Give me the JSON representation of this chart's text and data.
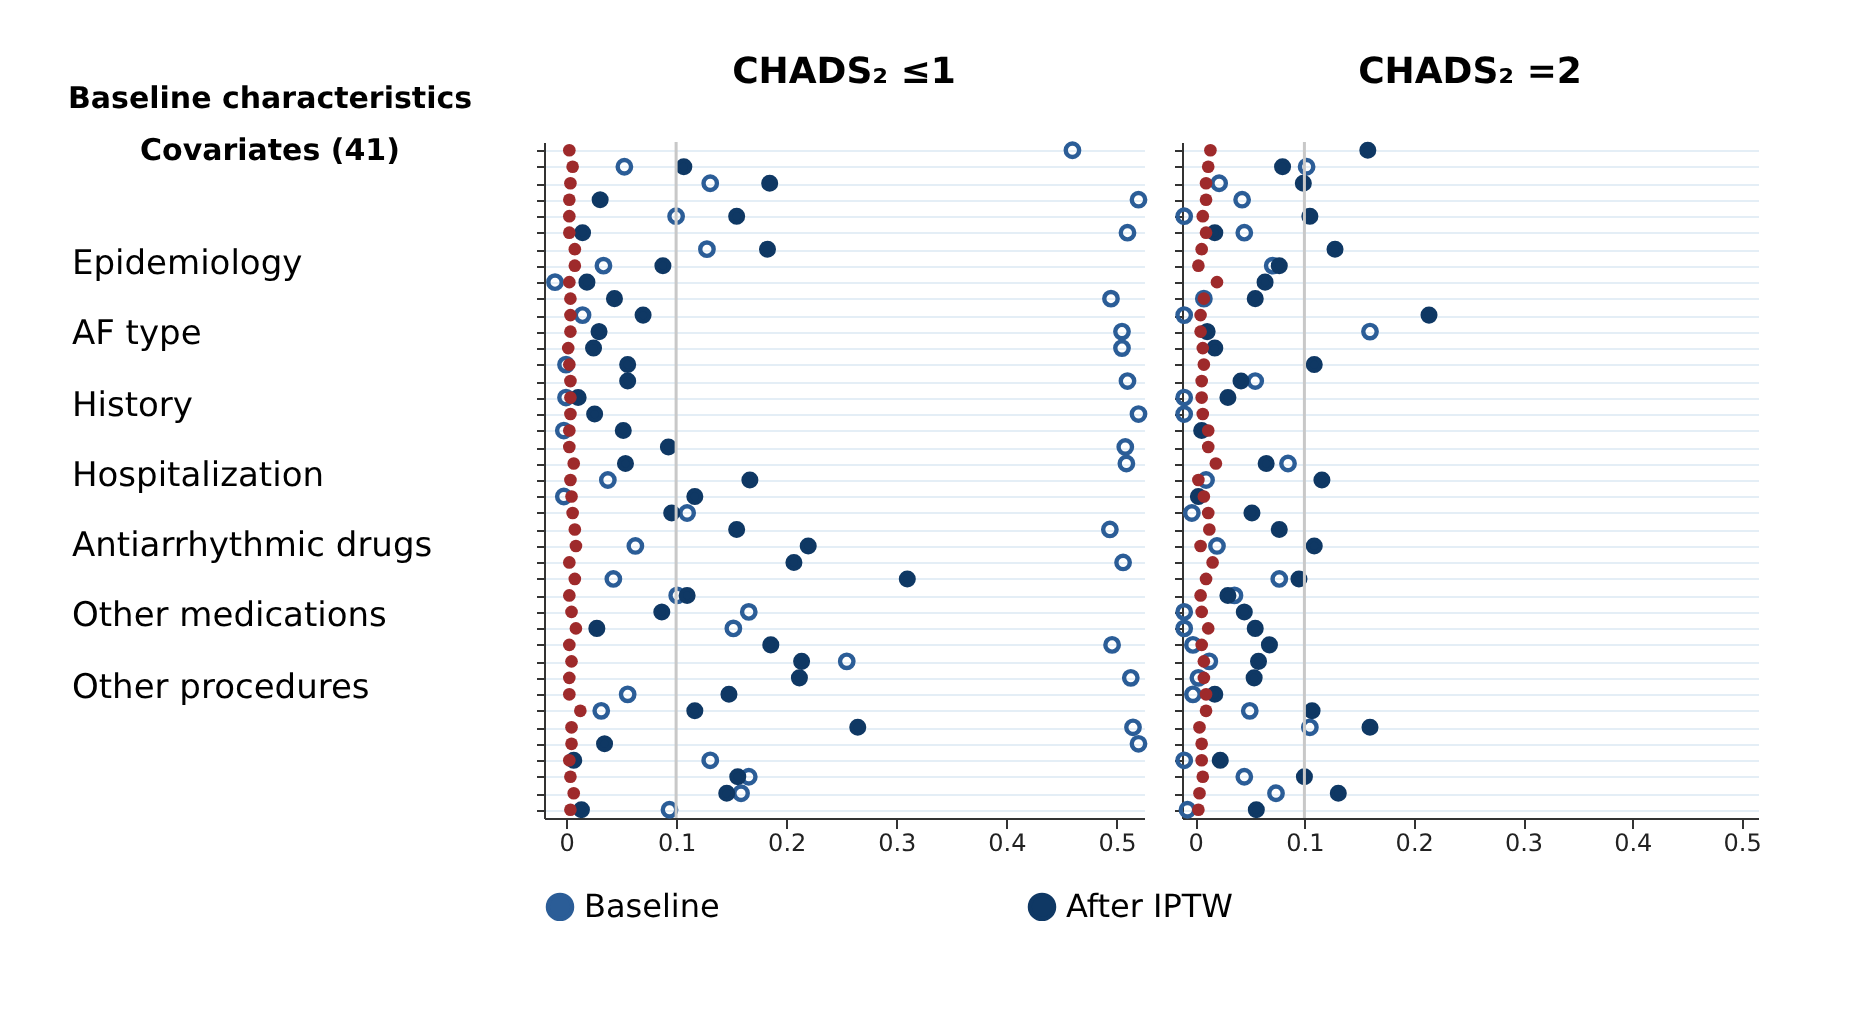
{
  "chart_data": [
    {
      "type": "scatter",
      "orientation": "horizontal",
      "title": "CHADS₂ ≤1",
      "ylabel": "Baseline characteristics Covariates (41)",
      "annotations": [
        "Epidemiology",
        "AF type",
        "History",
        "Hospitalization",
        "Antiarrhythmic drugs",
        "Other medications",
        "Other procedures"
      ],
      "categories": [
        null,
        null,
        null,
        null,
        null,
        null,
        null,
        null,
        null,
        null,
        null,
        null,
        null,
        null,
        null,
        null,
        null,
        null,
        null,
        null,
        null,
        null,
        null,
        null,
        null,
        null,
        null,
        null,
        null,
        null,
        null,
        null,
        null,
        null,
        null,
        null,
        null,
        null,
        null,
        null,
        null
      ],
      "xlim": [
        -0.02,
        0.525
      ],
      "xticks": [
        0,
        0.1,
        0.2,
        0.3,
        0.4,
        0.5
      ],
      "tick_labels": "x",
      "grid": "y",
      "legend": "bottom",
      "marker": "circle",
      "ref_lines": [
        {
          "axis": "x",
          "value": 0.1,
          "color": "#c8c8c8"
        }
      ],
      "series": [
        {
          "name": "Baseline",
          "color": "#2b5d97",
          "values": [
            0.46,
            0.053,
            0.131,
            0.52,
            0.1,
            0.51,
            0.128,
            0.034,
            -0.01,
            0.495,
            0.015,
            0.505,
            0.505,
            0.0,
            0.51,
            0.0,
            0.52,
            -0.002,
            0.508,
            0.509,
            0.038,
            -0.002,
            0.11,
            0.494,
            0.063,
            0.506,
            0.043,
            0.101,
            0.166,
            0.152,
            0.496,
            0.255,
            0.513,
            0.056,
            0.032,
            0.515,
            0.52,
            0.131,
            0.166,
            0.159,
            0.094
          ]
        },
        {
          "name": "After IPTW",
          "color": "#0f3864",
          "values": [
            null,
            0.107,
            0.185,
            0.031,
            0.155,
            0.015,
            0.183,
            0.088,
            0.019,
            0.044,
            0.07,
            0.03,
            0.025,
            0.056,
            0.056,
            0.011,
            0.026,
            0.052,
            0.093,
            0.054,
            0.167,
            0.117,
            0.096,
            0.155,
            0.22,
            0.207,
            0.31,
            0.11,
            0.087,
            0.028,
            0.186,
            0.214,
            0.212,
            0.148,
            0.117,
            0.265,
            0.035,
            0.007,
            0.156,
            0.146,
            0.014
          ]
        },
        {
          "color": "#9e2a2b",
          "values": [
            0.003,
            0.006,
            0.004,
            0.003,
            0.003,
            0.003,
            0.008,
            0.008,
            0.003,
            0.004,
            0.004,
            0.004,
            0.002,
            0.003,
            0.004,
            0.004,
            0.004,
            0.003,
            0.003,
            0.007,
            0.004,
            0.005,
            0.006,
            0.008,
            0.009,
            0.003,
            0.008,
            0.003,
            0.005,
            0.009,
            0.003,
            0.005,
            0.003,
            0.003,
            0.013,
            0.005,
            0.005,
            0.003,
            0.004,
            0.007,
            0.004
          ]
        }
      ]
    },
    {
      "type": "scatter",
      "orientation": "horizontal",
      "title": "CHADS₂ =2",
      "categories": [
        null,
        null,
        null,
        null,
        null,
        null,
        null,
        null,
        null,
        null,
        null,
        null,
        null,
        null,
        null,
        null,
        null,
        null,
        null,
        null,
        null,
        null,
        null,
        null,
        null,
        null,
        null,
        null,
        null,
        null,
        null,
        null,
        null,
        null,
        null,
        null,
        null,
        null,
        null,
        null,
        null
      ],
      "xlim": [
        -0.012,
        0.515
      ],
      "xticks": [
        0,
        0.1,
        0.2,
        0.3,
        0.4,
        0.5
      ],
      "tick_labels": "x",
      "grid": "y",
      "legend": "bottom",
      "marker": "circle",
      "ref_lines": [
        {
          "axis": "x",
          "value": 0.1,
          "color": "#c8c8c8"
        }
      ],
      "series": [
        {
          "name": "Baseline",
          "color": "#2b5d97",
          "values": [
            null,
            0.102,
            0.022,
            0.043,
            -0.01,
            0.045,
            null,
            0.071,
            null,
            0.008,
            -0.01,
            0.16,
            null,
            null,
            0.055,
            -0.01,
            -0.01,
            null,
            null,
            0.085,
            0.01,
            null,
            -0.003,
            null,
            0.02,
            null,
            0.077,
            0.036,
            -0.01,
            -0.01,
            -0.002,
            0.013,
            0.003,
            -0.002,
            0.05,
            0.105,
            null,
            -0.01,
            0.045,
            0.074,
            -0.007
          ]
        },
        {
          "name": "After IPTW",
          "color": "#0f3864",
          "values": [
            0.158,
            0.08,
            0.099,
            null,
            0.105,
            0.018,
            0.128,
            0.077,
            0.064,
            0.055,
            0.214,
            0.011,
            0.018,
            0.109,
            0.042,
            0.03,
            null,
            0.006,
            null,
            0.065,
            0.116,
            0.003,
            0.052,
            0.077,
            0.109,
            null,
            0.095,
            0.03,
            0.045,
            0.055,
            0.068,
            0.058,
            0.054,
            0.018,
            0.107,
            0.16,
            null,
            0.023,
            0.1,
            0.131,
            0.056
          ]
        },
        {
          "color": "#9e2a2b",
          "values": [
            0.014,
            0.012,
            0.01,
            0.01,
            0.007,
            0.01,
            0.006,
            0.003,
            0.02,
            0.008,
            0.005,
            0.005,
            0.007,
            0.008,
            0.006,
            0.006,
            0.007,
            0.012,
            0.012,
            0.019,
            0.003,
            0.008,
            0.012,
            0.013,
            0.005,
            0.016,
            0.01,
            0.005,
            0.006,
            0.012,
            0.006,
            0.008,
            0.008,
            0.01,
            0.01,
            0.004,
            0.006,
            0.006,
            0.007,
            0.004,
            0.003
          ]
        }
      ]
    }
  ]
}
